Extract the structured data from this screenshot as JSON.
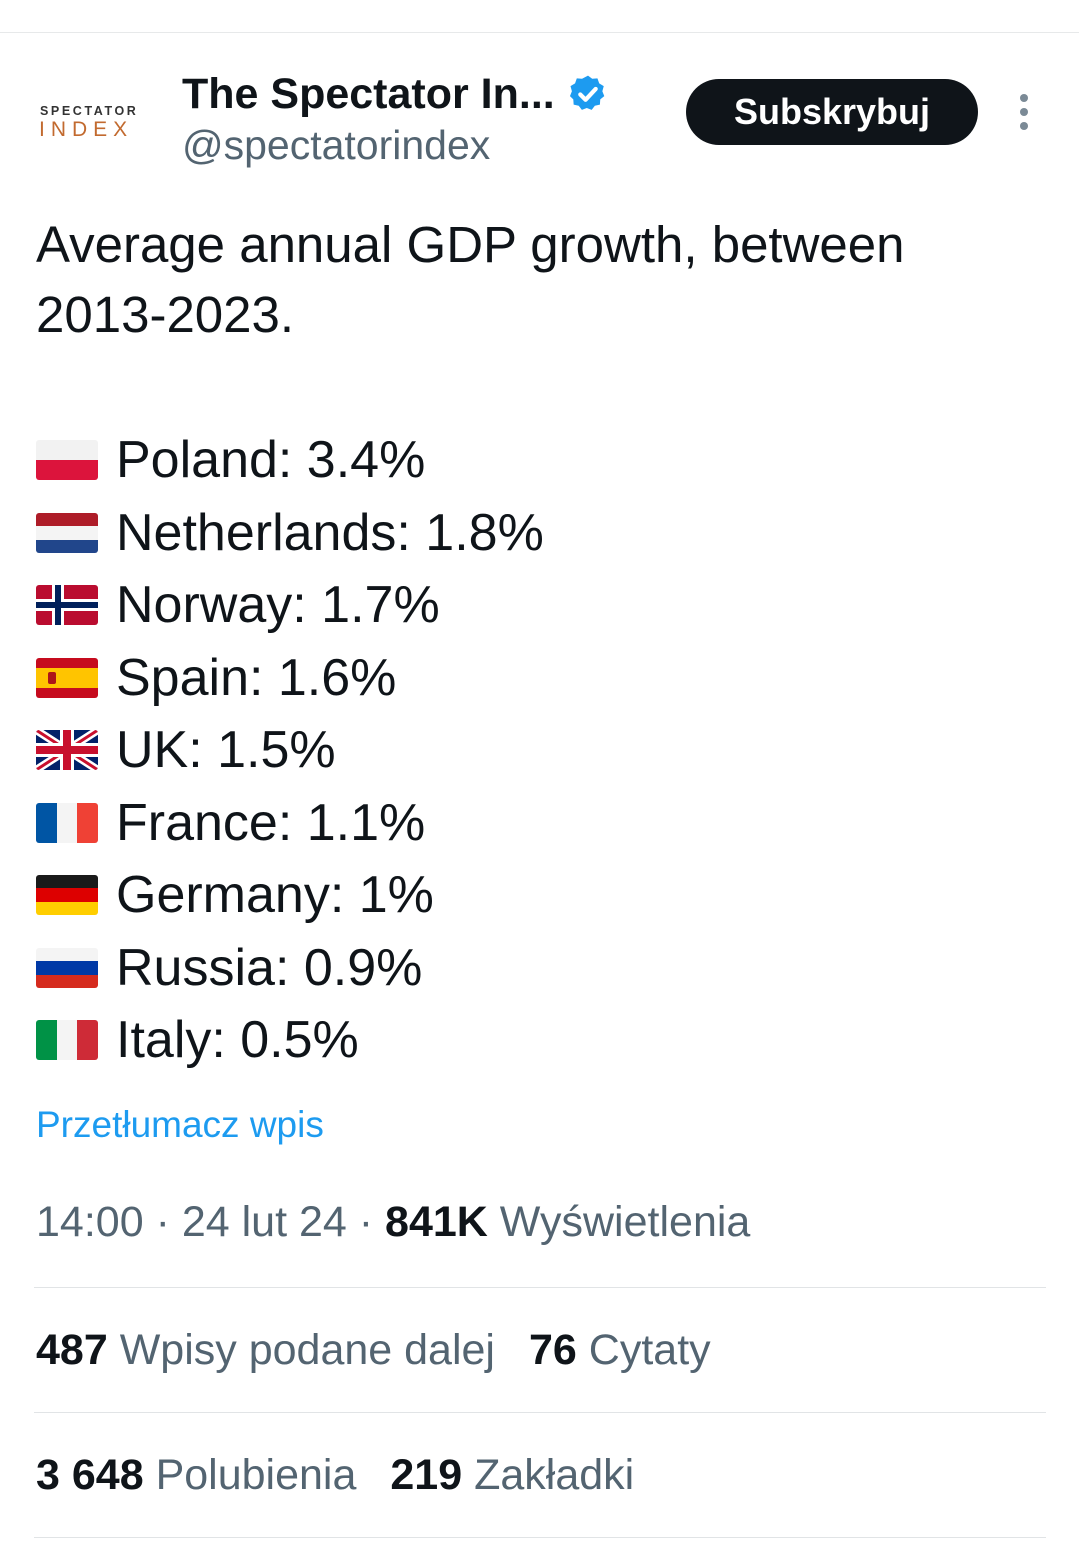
{
  "author": {
    "avatar_small_text": "SPECTATOR",
    "avatar_large_text": "INDEX",
    "display_name": "The Spectator In...",
    "handle": "@spectatorindex",
    "verified_icon": "verified-badge-icon",
    "subscribe_label": "Subskrybuj",
    "more_icon": "more-options-icon"
  },
  "post": {
    "intro_line1": "Average annual GDP growth, between",
    "intro_line2": "2013-2023.",
    "items": [
      {
        "flag": "poland-flag-icon",
        "text": "Poland: 3.4%"
      },
      {
        "flag": "netherlands-flag-icon",
        "text": "Netherlands: 1.8%"
      },
      {
        "flag": "norway-flag-icon",
        "text": "Norway: 1.7%"
      },
      {
        "flag": "spain-flag-icon",
        "text": "Spain: 1.6%"
      },
      {
        "flag": "uk-flag-icon",
        "text": "UK: 1.5%"
      },
      {
        "flag": "france-flag-icon",
        "text": "France: 1.1%"
      },
      {
        "flag": "germany-flag-icon",
        "text": "Germany: 1%"
      },
      {
        "flag": "russia-flag-icon",
        "text": "Russia: 0.9%"
      },
      {
        "flag": "italy-flag-icon",
        "text": "Italy: 0.5%"
      }
    ],
    "translate_label": "Przetłumacz wpis"
  },
  "meta": {
    "time": "14:00",
    "separator": "·",
    "date": "24 lut 24",
    "views_count": "841K",
    "views_label": "Wyświetlenia"
  },
  "stats": {
    "reposts_count": "487",
    "reposts_label": "Wpisy podane dalej",
    "quotes_count": "76",
    "quotes_label": "Cytaty",
    "likes_count": "3 648",
    "likes_label": "Polubienia",
    "bookmarks_count": "219",
    "bookmarks_label": "Zakładki"
  },
  "colors": {
    "text": "#0f1419",
    "secondary": "#536471",
    "link": "#1d9bf0",
    "verified": "#1d9bf0",
    "button_bg": "#0f1419"
  }
}
